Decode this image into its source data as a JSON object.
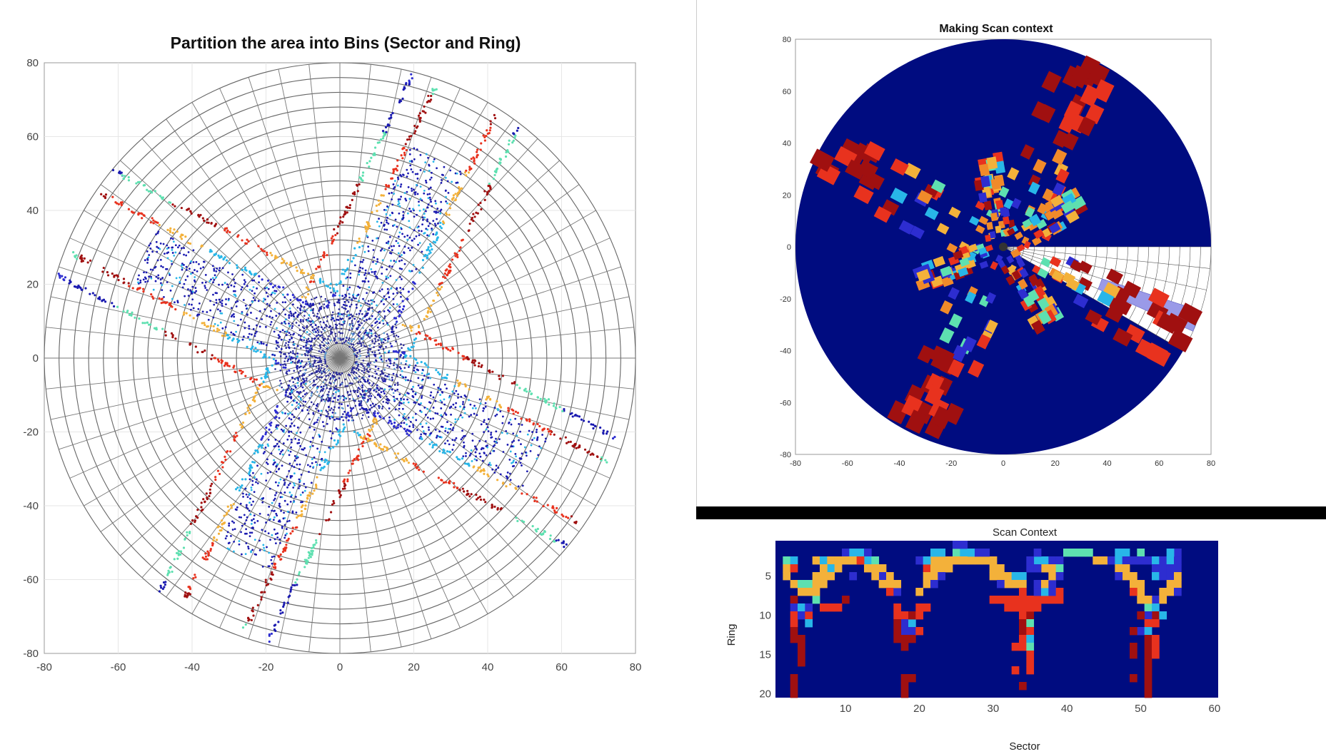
{
  "chart_data": [
    {
      "type": "scatter",
      "title": "Partition the area into Bins (Sector and Ring)",
      "xlim": [
        -80,
        80
      ],
      "ylim": [
        -80,
        80
      ],
      "xticks": [
        "-80",
        "-60",
        "-40",
        "-20",
        "0",
        "20",
        "40",
        "60",
        "80"
      ],
      "yticks": [
        "80",
        "60",
        "40",
        "20",
        "0",
        "-20",
        "-40",
        "-60",
        "-80"
      ],
      "grid": true,
      "rings": 20,
      "sectors": 60,
      "max_range": 80,
      "road_directions_deg": [
        64,
        152,
        244,
        332
      ],
      "colors": [
        "#1a1ab0",
        "#2d2dd0",
        "#28b6e8",
        "#f3b13a",
        "#e8321e",
        "#a01010",
        "#5ee0b0"
      ]
    },
    {
      "type": "heatmap",
      "title": "Making Scan context",
      "xlim": [
        -80,
        80
      ],
      "ylim": [
        -80,
        80
      ],
      "xticks": [
        "-80",
        "-60",
        "-40",
        "-20",
        "0",
        "20",
        "40",
        "60",
        "80"
      ],
      "yticks": [
        "80",
        "60",
        "40",
        "20",
        "0",
        "-20",
        "-40",
        "-60",
        "-80"
      ],
      "background": "#000c80",
      "highlight_color": "#9a9ae8"
    },
    {
      "type": "heatmap",
      "title": "Scan Context",
      "xlabel": "Sector",
      "ylabel": "Ring",
      "xticks": [
        "10",
        "20",
        "30",
        "40",
        "50",
        "60"
      ],
      "yticks": [
        "5",
        "10",
        "15",
        "20"
      ],
      "sectors": 60,
      "rings": 20,
      "background": "#000c80",
      "cells": [
        [
          2,
          3,
          "#5ee0b0"
        ],
        [
          3,
          3,
          "#28b6e8"
        ],
        [
          2,
          4,
          "#f3b13a"
        ],
        [
          3,
          4,
          "#e8321e"
        ],
        [
          2,
          5,
          "#f3b13a"
        ],
        [
          3,
          6,
          "#f3b13a"
        ],
        [
          4,
          6,
          "#5ee0b0"
        ],
        [
          4,
          7,
          "#f3b13a"
        ],
        [
          3,
          8,
          "#a01010"
        ],
        [
          3,
          9,
          "#2d2dd0"
        ],
        [
          3,
          10,
          "#e8321e"
        ],
        [
          3,
          11,
          "#e8321e"
        ],
        [
          3,
          12,
          "#a01010"
        ],
        [
          3,
          13,
          "#a01010"
        ],
        [
          4,
          13,
          "#a01010"
        ],
        [
          4,
          14,
          "#a01010"
        ],
        [
          4,
          15,
          "#a01010"
        ],
        [
          4,
          16,
          "#a01010"
        ],
        [
          3,
          18,
          "#a01010"
        ],
        [
          3,
          19,
          "#a01010"
        ],
        [
          3,
          20,
          "#a01010"
        ],
        [
          4,
          9,
          "#28b6e8"
        ],
        [
          4,
          10,
          "#2d2dd0"
        ],
        [
          5,
          10,
          "#e8321e"
        ],
        [
          5,
          11,
          "#28b6e8"
        ],
        [
          5,
          9,
          "#2d2dd0"
        ],
        [
          6,
          3,
          "#f3b13a"
        ],
        [
          7,
          3,
          "#28b6e8"
        ],
        [
          8,
          3,
          "#f3b13a"
        ],
        [
          9,
          3,
          "#f3b13a"
        ],
        [
          10,
          2,
          "#2d2dd0"
        ],
        [
          11,
          2,
          "#28b6e8"
        ],
        [
          12,
          2,
          "#28b6e8"
        ],
        [
          13,
          2,
          "#2d2dd0"
        ],
        [
          8,
          4,
          "#28b6e8"
        ],
        [
          7,
          4,
          "#f3b13a"
        ],
        [
          6,
          5,
          "#f3b13a"
        ],
        [
          5,
          6,
          "#5ee0b0"
        ],
        [
          5,
          7,
          "#f3b13a"
        ],
        [
          6,
          6,
          "#f3b13a"
        ],
        [
          6,
          8,
          "#5ee0b0"
        ],
        [
          6,
          7,
          "#f3b13a"
        ],
        [
          7,
          6,
          "#f3b13a"
        ],
        [
          7,
          5,
          "#f3b13a"
        ],
        [
          8,
          5,
          "#f3b13a"
        ],
        [
          9,
          4,
          "#f3b13a"
        ],
        [
          10,
          3,
          "#f3b13a"
        ],
        [
          11,
          3,
          "#f3b13a"
        ],
        [
          12,
          3,
          "#f3b13a"
        ],
        [
          13,
          3,
          "#28b6e8"
        ],
        [
          14,
          3,
          "#5ee0b0"
        ],
        [
          15,
          4,
          "#f3b13a"
        ],
        [
          15,
          5,
          "#2d2dd0"
        ],
        [
          14,
          5,
          "#f3b13a"
        ],
        [
          13,
          4,
          "#f3b13a"
        ],
        [
          14,
          4,
          "#f3b13a"
        ],
        [
          15,
          6,
          "#f3b13a"
        ],
        [
          16,
          6,
          "#f3b13a"
        ],
        [
          16,
          7,
          "#e8321e"
        ],
        [
          17,
          7,
          "#2d2dd0"
        ],
        [
          17,
          6,
          "#f3b13a"
        ],
        [
          16,
          5,
          "#f3b13a"
        ],
        [
          7,
          9,
          "#e8321e"
        ],
        [
          8,
          9,
          "#e8321e"
        ],
        [
          9,
          9,
          "#e8321e"
        ],
        [
          10,
          8,
          "#a01010"
        ],
        [
          11,
          5,
          "#2d2dd0"
        ],
        [
          12,
          3,
          "#e8321e"
        ],
        [
          17,
          9,
          "#e8321e"
        ],
        [
          18,
          10,
          "#e8321e"
        ],
        [
          18,
          11,
          "#2d2dd0"
        ],
        [
          19,
          11,
          "#28b6e8"
        ],
        [
          18,
          12,
          "#2d2dd0"
        ],
        [
          19,
          12,
          "#2d2dd0"
        ],
        [
          18,
          13,
          "#a01010"
        ],
        [
          18,
          14,
          "#a01010"
        ],
        [
          17,
          10,
          "#e8321e"
        ],
        [
          17,
          11,
          "#a01010"
        ],
        [
          17,
          12,
          "#a01010"
        ],
        [
          17,
          13,
          "#a01010"
        ],
        [
          18,
          18,
          "#a01010"
        ],
        [
          19,
          18,
          "#a01010"
        ],
        [
          18,
          19,
          "#a01010"
        ],
        [
          18,
          20,
          "#a01010"
        ],
        [
          20,
          9,
          "#e8321e"
        ],
        [
          19,
          10,
          "#a01010"
        ],
        [
          20,
          10,
          "#e8321e"
        ],
        [
          21,
          9,
          "#e8321e"
        ],
        [
          19,
          13,
          "#a01010"
        ],
        [
          20,
          12,
          "#e8321e"
        ],
        [
          21,
          4,
          "#e8321e"
        ],
        [
          21,
          5,
          "#f3b13a"
        ],
        [
          22,
          4,
          "#f3b13a"
        ],
        [
          22,
          5,
          "#f3b13a"
        ],
        [
          21,
          6,
          "#f3b13a"
        ],
        [
          20,
          7,
          "#f3b13a"
        ],
        [
          23,
          3,
          "#f3b13a"
        ],
        [
          24,
          3,
          "#f3b13a"
        ],
        [
          25,
          2,
          "#5ee0b0"
        ],
        [
          26,
          2,
          "#28b6e8"
        ],
        [
          25,
          1,
          "#2d2dd0"
        ],
        [
          26,
          1,
          "#2d2dd0"
        ],
        [
          27,
          3,
          "#f3b13a"
        ],
        [
          28,
          3,
          "#f3b13a"
        ],
        [
          29,
          3,
          "#f3b13a"
        ],
        [
          30,
          4,
          "#f3b13a"
        ],
        [
          31,
          4,
          "#f3b13a"
        ],
        [
          31,
          5,
          "#f3b13a"
        ],
        [
          32,
          5,
          "#f3b13a"
        ],
        [
          33,
          5,
          "#28b6e8"
        ],
        [
          34,
          5,
          "#28b6e8"
        ],
        [
          32,
          6,
          "#f3b13a"
        ],
        [
          33,
          6,
          "#f3b13a"
        ],
        [
          34,
          6,
          "#f3b13a"
        ],
        [
          30,
          3,
          "#f3b13a"
        ],
        [
          24,
          4,
          "#f3b13a"
        ],
        [
          23,
          4,
          "#f3b13a"
        ],
        [
          22,
          3,
          "#f3b13a"
        ],
        [
          20,
          3,
          "#2d2dd0"
        ],
        [
          21,
          3,
          "#28b6e8"
        ],
        [
          27,
          2,
          "#28b6e8"
        ],
        [
          28,
          2,
          "#2d2dd0"
        ],
        [
          29,
          2,
          "#2d2dd0"
        ],
        [
          26,
          3,
          "#f3b13a"
        ],
        [
          25,
          3,
          "#f3b13a"
        ],
        [
          30,
          5,
          "#f3b13a"
        ],
        [
          31,
          6,
          "#2d2dd0"
        ],
        [
          22,
          6,
          "#2d2dd0"
        ],
        [
          23,
          5,
          "#2d2dd0"
        ],
        [
          22,
          2,
          "#28b6e8"
        ],
        [
          23,
          2,
          "#28b6e8"
        ],
        [
          30,
          8,
          "#e8321e"
        ],
        [
          31,
          8,
          "#e8321e"
        ],
        [
          32,
          8,
          "#e8321e"
        ],
        [
          33,
          8,
          "#e8321e"
        ],
        [
          34,
          8,
          "#e8321e"
        ],
        [
          35,
          8,
          "#e8321e"
        ],
        [
          32,
          9,
          "#e8321e"
        ],
        [
          33,
          9,
          "#e8321e"
        ],
        [
          34,
          9,
          "#e8321e"
        ],
        [
          34,
          10,
          "#e8321e"
        ],
        [
          35,
          10,
          "#a01010"
        ],
        [
          34,
          11,
          "#a01010"
        ],
        [
          35,
          11,
          "#5ee0b0"
        ],
        [
          34,
          12,
          "#a01010"
        ],
        [
          35,
          12,
          "#e8321e"
        ],
        [
          34,
          13,
          "#e8321e"
        ],
        [
          35,
          13,
          "#28b6e8"
        ],
        [
          33,
          14,
          "#e8321e"
        ],
        [
          34,
          14,
          "#e8321e"
        ],
        [
          35,
          14,
          "#5ee0b0"
        ],
        [
          35,
          15,
          "#e8321e"
        ],
        [
          35,
          16,
          "#e8321e"
        ],
        [
          35,
          17,
          "#e8321e"
        ],
        [
          33,
          17,
          "#e8321e"
        ],
        [
          34,
          19,
          "#a01010"
        ],
        [
          36,
          8,
          "#e8321e"
        ],
        [
          37,
          8,
          "#e8321e"
        ],
        [
          38,
          8,
          "#e8321e"
        ],
        [
          36,
          7,
          "#2d2dd0"
        ],
        [
          37,
          7,
          "#28b6e8"
        ],
        [
          38,
          7,
          "#2d2dd0"
        ],
        [
          36,
          6,
          "#2d2dd0"
        ],
        [
          37,
          6,
          "#f3b13a"
        ],
        [
          38,
          6,
          "#2d2dd0"
        ],
        [
          35,
          9,
          "#e8321e"
        ],
        [
          36,
          9,
          "#e8321e"
        ],
        [
          34,
          7,
          "#e8321e"
        ],
        [
          39,
          7,
          "#e8321e"
        ],
        [
          39,
          8,
          "#e8321e"
        ],
        [
          36,
          3,
          "#28b6e8"
        ],
        [
          37,
          3,
          "#28b6e8"
        ],
        [
          38,
          3,
          "#2d2dd0"
        ],
        [
          39,
          3,
          "#2d2dd0"
        ],
        [
          36,
          2,
          "#2d2dd0"
        ],
        [
          37,
          4,
          "#f3b13a"
        ],
        [
          38,
          4,
          "#f3b13a"
        ],
        [
          38,
          5,
          "#f3b13a"
        ],
        [
          39,
          4,
          "#5ee0b0"
        ],
        [
          39,
          5,
          "#2d2dd0"
        ],
        [
          35,
          4,
          "#2d2dd0"
        ],
        [
          36,
          4,
          "#2d2dd0"
        ],
        [
          35,
          3,
          "#2d2dd0"
        ],
        [
          40,
          2,
          "#5ee0b0"
        ],
        [
          41,
          2,
          "#5ee0b0"
        ],
        [
          42,
          2,
          "#5ee0b0"
        ],
        [
          43,
          2,
          "#5ee0b0"
        ],
        [
          44,
          3,
          "#f3b13a"
        ],
        [
          45,
          3,
          "#f3b13a"
        ],
        [
          46,
          3,
          "#2d2dd0"
        ],
        [
          47,
          2,
          "#28b6e8"
        ],
        [
          48,
          2,
          "#28b6e8"
        ],
        [
          47,
          3,
          "#28b6e8"
        ],
        [
          48,
          3,
          "#2d2dd0"
        ],
        [
          47,
          4,
          "#f3b13a"
        ],
        [
          48,
          4,
          "#f3b13a"
        ],
        [
          48,
          5,
          "#f3b13a"
        ],
        [
          49,
          5,
          "#f3b13a"
        ],
        [
          49,
          6,
          "#f3b13a"
        ],
        [
          50,
          6,
          "#f3b13a"
        ],
        [
          50,
          7,
          "#f3b13a"
        ],
        [
          49,
          7,
          "#e8321e"
        ],
        [
          50,
          2,
          "#5ee0b0"
        ],
        [
          51,
          3,
          "#2d2dd0"
        ],
        [
          52,
          3,
          "#28b6e8"
        ],
        [
          53,
          3,
          "#2d2dd0"
        ],
        [
          54,
          3,
          "#28b6e8"
        ],
        [
          55,
          3,
          "#2d2dd0"
        ],
        [
          52,
          4,
          "#2d2dd0"
        ],
        [
          53,
          4,
          "#2d2dd0"
        ],
        [
          54,
          4,
          "#2d2dd0"
        ],
        [
          55,
          4,
          "#2d2dd0"
        ],
        [
          52,
          5,
          "#28b6e8"
        ],
        [
          53,
          5,
          "#2d2dd0"
        ],
        [
          54,
          5,
          "#2d2dd0"
        ],
        [
          55,
          5,
          "#f3b13a"
        ],
        [
          54,
          6,
          "#f3b13a"
        ],
        [
          55,
          6,
          "#f3b13a"
        ],
        [
          53,
          7,
          "#f3b13a"
        ],
        [
          54,
          7,
          "#f3b13a"
        ],
        [
          55,
          7,
          "#2d2dd0"
        ],
        [
          52,
          8,
          "#2d2dd0"
        ],
        [
          53,
          8,
          "#f3b13a"
        ],
        [
          51,
          9,
          "#5ee0b0"
        ],
        [
          52,
          9,
          "#28b6e8"
        ],
        [
          52,
          10,
          "#a01010"
        ],
        [
          51,
          10,
          "#2d2dd0"
        ],
        [
          53,
          10,
          "#28b6e8"
        ],
        [
          51,
          11,
          "#e8321e"
        ],
        [
          52,
          11,
          "#e8321e"
        ],
        [
          50,
          12,
          "#2d2dd0"
        ],
        [
          51,
          12,
          "#28b6e8"
        ],
        [
          51,
          13,
          "#a01010"
        ],
        [
          52,
          13,
          "#e8321e"
        ],
        [
          51,
          14,
          "#a01010"
        ],
        [
          52,
          14,
          "#e8321e"
        ],
        [
          51,
          15,
          "#a01010"
        ],
        [
          52,
          15,
          "#e8321e"
        ],
        [
          51,
          16,
          "#a01010"
        ],
        [
          51,
          17,
          "#a01010"
        ],
        [
          51,
          18,
          "#a01010"
        ],
        [
          51,
          19,
          "#a01010"
        ],
        [
          51,
          20,
          "#a01010"
        ],
        [
          49,
          12,
          "#a01010"
        ],
        [
          49,
          14,
          "#a01010"
        ],
        [
          49,
          15,
          "#a01010"
        ],
        [
          49,
          18,
          "#a01010"
        ],
        [
          50,
          10,
          "#a01010"
        ],
        [
          51,
          8,
          "#f3b13a"
        ],
        [
          50,
          8,
          "#f3b13a"
        ],
        [
          49,
          3,
          "#2d2dd0"
        ],
        [
          50,
          3,
          "#2d2dd0"
        ],
        [
          55,
          2,
          "#2d2dd0"
        ],
        [
          54,
          2,
          "#28b6e8"
        ],
        [
          47,
          5,
          "#2d2dd0"
        ]
      ]
    }
  ]
}
